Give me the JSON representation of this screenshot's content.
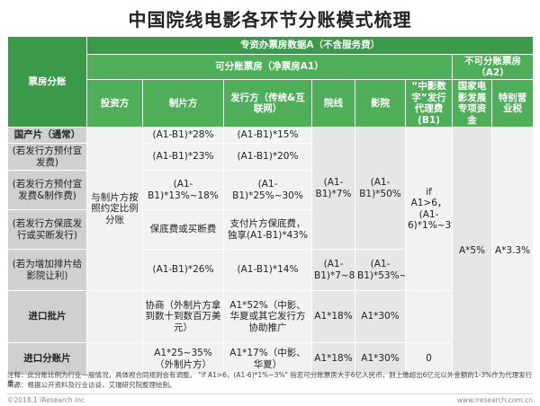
{
  "title": "中国院线电影各环节分账模式梳理",
  "header": {
    "row_label": "票房分账",
    "top": "专资办票房数据A（不含服务费）",
    "shareable": "可分账票房（净票房A1）",
    "nonshareable": "不可分账票房（A2）",
    "cols": [
      "投资方",
      "制片方",
      "发行方（传统&互联网）",
      "院线",
      "影院",
      "“中影数字”发行代理费(B1)",
      "国家电影发展专项资金",
      "特别营业税"
    ]
  },
  "rows": [
    {
      "label": "国产片（通常）",
      "producer": "(A1-B1)*28%",
      "distributor": "(A1-B1)*15%"
    },
    {
      "label": "(若发行方预付宣发费)",
      "producer": "(A1-B1)*23%",
      "distributor": "(A1-B1)*20%"
    },
    {
      "label": "(若发行方预付宣发费&制作费)",
      "producer": "(A1-B1)*13%~18%",
      "distributor": "(A1-B1)*25%~30%"
    },
    {
      "label": "(若发行方保底发行或买断发行)",
      "producer": "保底费或买断费",
      "distributor": "支付片方保底费，独享(A1-B1)*43%"
    },
    {
      "label": "(若为增加排片给影院让利)",
      "producer": "(A1-B1)*26%",
      "distributor": "(A1-B1)*14%",
      "cinema_chain": "(A1-B1)*7~8%",
      "cinema": "(A1-B1)*53%~55%"
    },
    {
      "label": "进口批片",
      "producer": "协商（外制片方拿到数十到数百万美元）",
      "distributor": "A1*52%（中影、华夏或其它发行方协助推广",
      "cinema_chain": "A1*18%",
      "cinema": "A1*30%"
    },
    {
      "label": "进口分账片",
      "producer": "A1*25~35%（外制片方）",
      "distributor": "A1*17%（中影、华夏）",
      "cinema_chain": "A1*18%",
      "cinema": "A1*30%",
      "agency": "0"
    }
  ],
  "merged": {
    "investor": "与制片方按照约定比例分账",
    "cinema_chain_domestic": "(A1-B1)*7%",
    "cinema_domestic": "(A1-B1)*50%",
    "agency_fee": "if A1>6，(A1-6)*1%~3%",
    "fund": "A*5%",
    "tax": "A*3.3%"
  },
  "notes": {
    "note1": "注释：此分账比例为行业一般情况，具体视合同规则会有调整。 \"if A1>6，(A1-6)*1%~3%\" 指若可分账票房大于6亿人民币，则上缴超出6亿元以外金额的1-3%作为代理发行费。",
    "note2": "来源：根据公开资料及行业访谈，艾瑞研究院整理绘制。",
    "copyright": "©2018.1 iResearch Inc",
    "website": "www.iresearch.com.cn"
  }
}
